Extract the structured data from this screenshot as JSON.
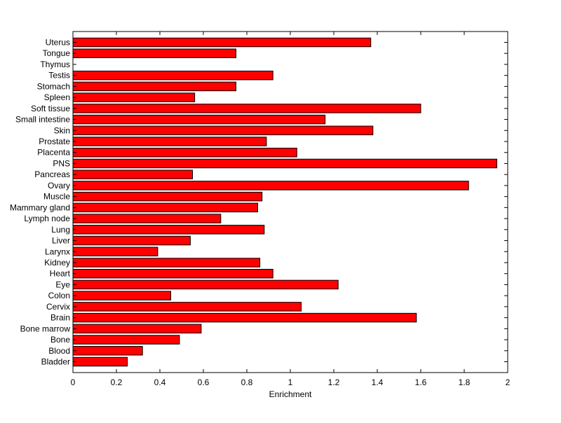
{
  "chart_data": {
    "type": "bar",
    "orientation": "horizontal",
    "xlabel": "Enrichment",
    "ylabel": "",
    "title": "",
    "xlim": [
      0,
      2
    ],
    "xticks": [
      "0",
      "0.2",
      "0.4",
      "0.6",
      "0.8",
      "1",
      "1.2",
      "1.4",
      "1.6",
      "1.8",
      "2"
    ],
    "grid": false,
    "bar_color": "#ff0000",
    "categories": [
      "Bladder",
      "Blood",
      "Bone",
      "Bone marrow",
      "Brain",
      "Cervix",
      "Colon",
      "Eye",
      "Heart",
      "Kidney",
      "Larynx",
      "Liver",
      "Lung",
      "Lymph node",
      "Mammary gland",
      "Muscle",
      "Ovary",
      "Pancreas",
      "PNS",
      "Placenta",
      "Prostate",
      "Skin",
      "Small intestine",
      "Soft tissue",
      "Spleen",
      "Stomach",
      "Testis",
      "Thymus",
      "Tongue",
      "Uterus"
    ],
    "values": [
      0.25,
      0.32,
      0.49,
      0.59,
      1.58,
      1.05,
      0.45,
      1.22,
      0.92,
      0.86,
      0.39,
      0.54,
      0.88,
      0.68,
      0.85,
      0.87,
      1.82,
      0.55,
      1.95,
      1.03,
      0.89,
      1.38,
      1.16,
      1.6,
      0.56,
      0.75,
      0.92,
      0,
      0.75,
      1.37
    ]
  }
}
